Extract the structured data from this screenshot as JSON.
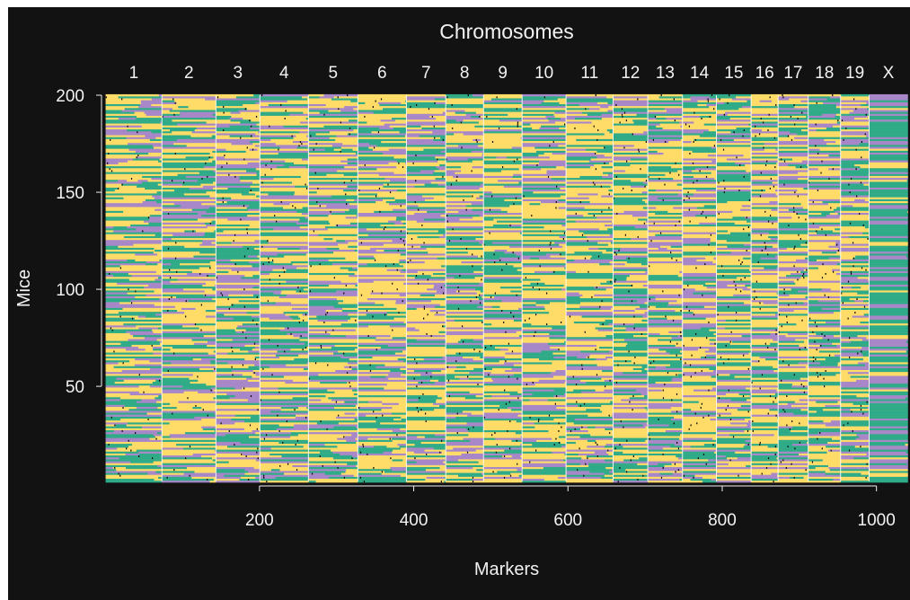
{
  "chart_data": {
    "type": "heatmap",
    "title": "Chromosomes",
    "xlabel": "Markers",
    "ylabel": "Mice",
    "xlim": [
      1,
      1040
    ],
    "ylim": [
      1,
      200
    ],
    "x_ticks": [
      200,
      400,
      600,
      800,
      1000
    ],
    "y_ticks": [
      50,
      100,
      150,
      200
    ],
    "chromosomes": [
      {
        "label": "1",
        "start": 1,
        "end": 73
      },
      {
        "label": "2",
        "start": 74,
        "end": 143
      },
      {
        "label": "3",
        "start": 144,
        "end": 200
      },
      {
        "label": "4",
        "start": 201,
        "end": 263
      },
      {
        "label": "5",
        "start": 264,
        "end": 327
      },
      {
        "label": "6",
        "start": 328,
        "end": 390
      },
      {
        "label": "7",
        "start": 391,
        "end": 441
      },
      {
        "label": "8",
        "start": 442,
        "end": 490
      },
      {
        "label": "9",
        "start": 491,
        "end": 540
      },
      {
        "label": "10",
        "start": 541,
        "end": 597
      },
      {
        "label": "11",
        "start": 598,
        "end": 658
      },
      {
        "label": "12",
        "start": 659,
        "end": 703
      },
      {
        "label": "13",
        "start": 704,
        "end": 748
      },
      {
        "label": "14",
        "start": 749,
        "end": 792
      },
      {
        "label": "15",
        "start": 793,
        "end": 837
      },
      {
        "label": "16",
        "start": 838,
        "end": 872
      },
      {
        "label": "17",
        "start": 873,
        "end": 911
      },
      {
        "label": "18",
        "start": 912,
        "end": 953
      },
      {
        "label": "19",
        "start": 954,
        "end": 990
      },
      {
        "label": "X",
        "start": 991,
        "end": 1040
      }
    ],
    "genotype_colors": {
      "AA": "#ffdc68",
      "AB": "#2fab88",
      "BB": "#a887c9",
      "missing": "#000000",
      "separator": "#ffffff"
    },
    "background": "#121212",
    "grid": false,
    "legend": "none"
  }
}
